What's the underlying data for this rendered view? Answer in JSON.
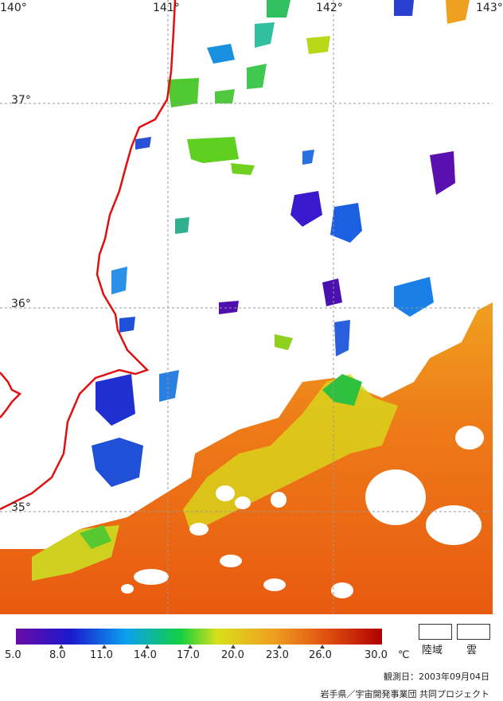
{
  "map": {
    "longitude_labels": [
      "140°",
      "141°",
      "142°",
      "143°"
    ],
    "latitude_labels": [
      "37°",
      "36°",
      "35°"
    ],
    "coastline_color": "#e01010",
    "grid_color": "#999999",
    "cloud_color": "#ffffff"
  },
  "legend": {
    "ticks": [
      "5.0",
      "8.0",
      "11.0",
      "14.0",
      "17.0",
      "20.0",
      "23.0",
      "26.0",
      "30.0"
    ],
    "unit": "℃",
    "land_label": "陸域",
    "cloud_label": "雲",
    "colors": [
      "#6a0aa6",
      "#1a1acc",
      "#0aa0f0",
      "#12d040",
      "#d8e01a",
      "#f0a020",
      "#e05010",
      "#b00000"
    ]
  },
  "footer": {
    "observation_date": "観測日：2003年09月04日",
    "credit": "岩手県／宇宙開発事業団 共同プロジェクト"
  }
}
